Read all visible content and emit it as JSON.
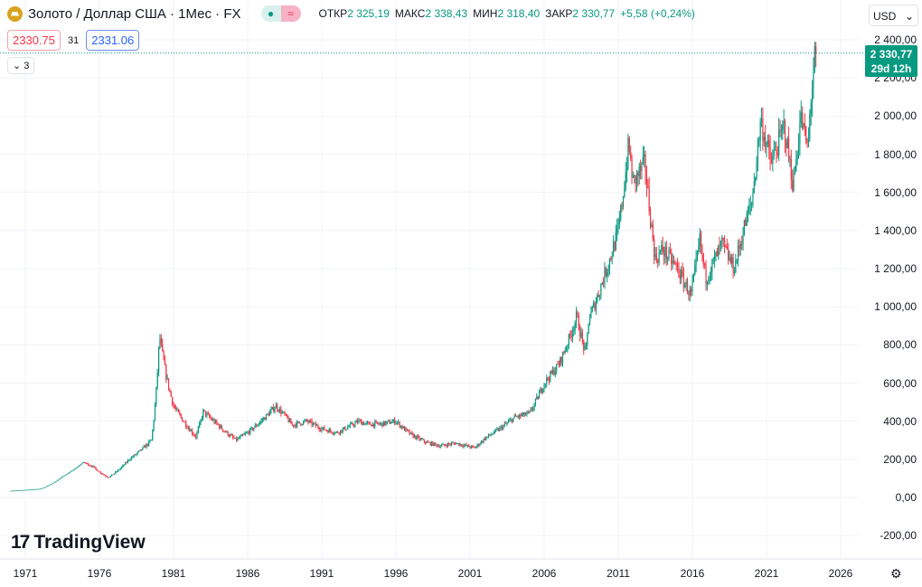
{
  "header": {
    "symbol": "Золото / Доллар США · 1Мес · FX",
    "open_label": "ОТКР",
    "open": "2 325,19",
    "high_label": "МАКС",
    "high": "2 338,43",
    "low_label": "МИН",
    "low": "2 318,40",
    "close_label": "ЗАКР",
    "close": "2 330,77",
    "change": "+5,58 (+0,24%)",
    "pill_icon": "≈"
  },
  "trade": {
    "sell": "2330.75",
    "spread": "31",
    "buy": "2331.06"
  },
  "indicators_toggle": "3",
  "currency": "USD",
  "last_price": {
    "price": "2 330,77",
    "countdown": "29d 12h"
  },
  "logo": "TradingView",
  "colors": {
    "up": "#089981",
    "down": "#f23645",
    "grid": "#f0f3fa"
  },
  "chart_data": {
    "type": "candlestick",
    "title": "Золото / Доллар США · 1Мес · FX",
    "ylim": [
      -250,
      2480
    ],
    "y_ticks": [
      "-200,00",
      "0,00",
      "200,00",
      "400,00",
      "600,00",
      "800,00",
      "1 000,00",
      "1 200,00",
      "1 400,00",
      "1 600,00",
      "1 800,00",
      "2 000,00",
      "2 200,00",
      "2 400,00"
    ],
    "y_tick_values": [
      -200,
      0,
      200,
      400,
      600,
      800,
      1000,
      1200,
      1400,
      1600,
      1800,
      2000,
      2200,
      2400
    ],
    "x_ticks": [
      "1971",
      "1976",
      "1981",
      "1986",
      "1991",
      "1996",
      "2001",
      "2006",
      "2011",
      "2016",
      "2021",
      "2026"
    ],
    "price_path": [
      [
        1970.0,
        35
      ],
      [
        1972,
        45
      ],
      [
        1973.5,
        110
      ],
      [
        1974.9,
        185
      ],
      [
        1975.5,
        165
      ],
      [
        1976.6,
        105
      ],
      [
        1978,
        200
      ],
      [
        1979.5,
        300
      ],
      [
        1980.05,
        850
      ],
      [
        1980.5,
        640
      ],
      [
        1981,
        480
      ],
      [
        1982.5,
        320
      ],
      [
        1983,
        450
      ],
      [
        1984,
        380
      ],
      [
        1985.2,
        300
      ],
      [
        1986,
        340
      ],
      [
        1987.9,
        480
      ],
      [
        1988.5,
        430
      ],
      [
        1989,
        380
      ],
      [
        1990,
        400
      ],
      [
        1991,
        360
      ],
      [
        1992,
        340
      ],
      [
        1993.5,
        400
      ],
      [
        1994,
        385
      ],
      [
        1995,
        385
      ],
      [
        1996,
        400
      ],
      [
        1997,
        330
      ],
      [
        1998,
        290
      ],
      [
        1999,
        270
      ],
      [
        2000,
        285
      ],
      [
        2001.3,
        260
      ],
      [
        2002,
        310
      ],
      [
        2003,
        360
      ],
      [
        2004,
        420
      ],
      [
        2005,
        440
      ],
      [
        2006,
        600
      ],
      [
        2007,
        700
      ],
      [
        2008.2,
        950
      ],
      [
        2008.8,
        750
      ],
      [
        2009,
        930
      ],
      [
        2010,
        1150
      ],
      [
        2011,
        1400
      ],
      [
        2011.7,
        1850
      ],
      [
        2012,
        1650
      ],
      [
        2012.8,
        1750
      ],
      [
        2013.5,
        1250
      ],
      [
        2014,
        1300
      ],
      [
        2015,
        1200
      ],
      [
        2015.9,
        1060
      ],
      [
        2016.5,
        1350
      ],
      [
        2016.9,
        1150
      ],
      [
        2018,
        1330
      ],
      [
        2018.8,
        1200
      ],
      [
        2019.5,
        1420
      ],
      [
        2020,
        1550
      ],
      [
        2020.6,
        1980
      ],
      [
        2021,
        1850
      ],
      [
        2021.3,
        1750
      ],
      [
        2022.2,
        1950
      ],
      [
        2022.8,
        1640
      ],
      [
        2023.3,
        2000
      ],
      [
        2023.8,
        1820
      ],
      [
        2023.95,
        2060
      ],
      [
        2024.25,
        2300
      ],
      [
        2024.35,
        2330.77
      ]
    ],
    "last_price": 2330.77
  }
}
